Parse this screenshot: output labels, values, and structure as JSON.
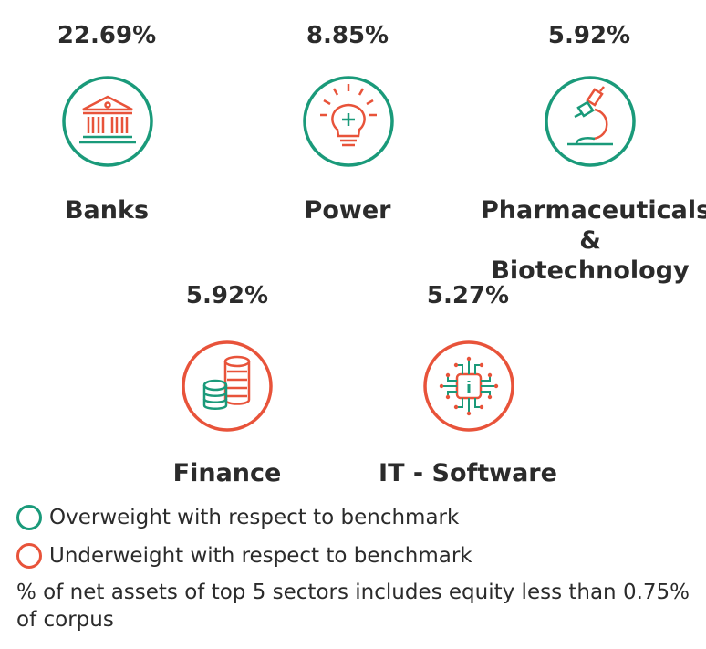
{
  "colors": {
    "overweight": "#1a9a7a",
    "underweight": "#e8533a",
    "text": "#2b2b2b"
  },
  "sectors": [
    {
      "percent": "22.69%",
      "name": "Banks",
      "icon": "bank-icon",
      "status": "overweight"
    },
    {
      "percent": "8.85%",
      "name": "Power",
      "icon": "lightbulb-icon",
      "status": "overweight"
    },
    {
      "percent": "5.92%",
      "name_line1": "Pharmaceuticals",
      "name_line2": "& Biotechnology",
      "icon": "microscope-icon",
      "status": "overweight"
    },
    {
      "percent": "5.92%",
      "name": "Finance",
      "icon": "coins-icon",
      "status": "underweight"
    },
    {
      "percent": "5.27%",
      "name": "IT - Software",
      "icon": "chip-icon",
      "status": "underweight"
    }
  ],
  "legend": {
    "overweight": "Overweight with respect to benchmark",
    "underweight": "Underweight with respect to benchmark"
  },
  "note": "% of net assets of top 5 sectors includes equity less than 0.75% of corpus"
}
